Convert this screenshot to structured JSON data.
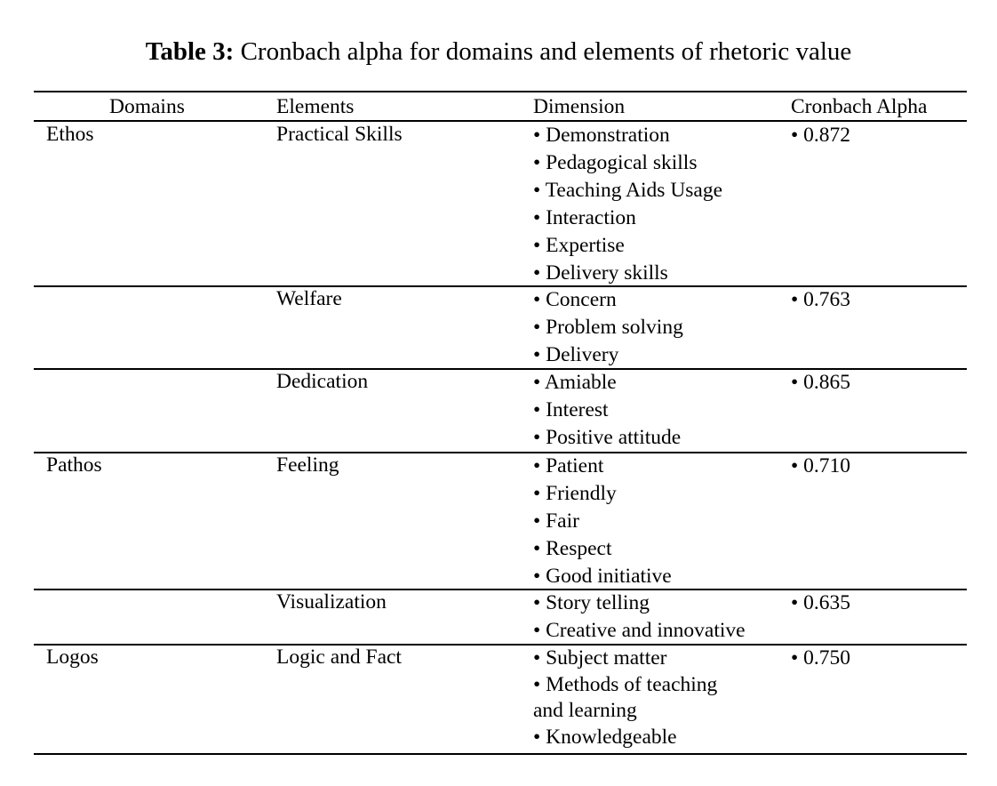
{
  "title": {
    "label": "Table 3:",
    "text": "Cronbach alpha for domains and elements of rhetoric value"
  },
  "headers": {
    "domains": "Domains",
    "elements": "Elements",
    "dimension": "Dimension",
    "alpha": "Cronbach Alpha"
  },
  "bullet": "•",
  "rows": [
    {
      "domain": "Ethos",
      "element": "Practical Skills",
      "dimensions": [
        "Demonstration",
        "Pedagogical skills",
        "Teaching Aids Usage",
        "Interaction",
        "Expertise",
        "Delivery skills"
      ],
      "alpha": "0.872"
    },
    {
      "domain": "",
      "element": "Welfare",
      "dimensions": [
        "Concern",
        "Problem solving",
        "Delivery"
      ],
      "alpha": "0.763"
    },
    {
      "domain": "",
      "element": "Dedication",
      "dimensions": [
        "Amiable",
        "Interest",
        "Positive attitude"
      ],
      "alpha": "0.865"
    },
    {
      "domain": "Pathos",
      "element": "Feeling",
      "dimensions": [
        "Patient",
        "Friendly",
        "Fair",
        "Respect",
        "Good initiative"
      ],
      "alpha": "0.710"
    },
    {
      "domain": "",
      "element": "Visualization",
      "dimensions": [
        "Story telling",
        "Creative and innovative"
      ],
      "alpha": "0.635"
    },
    {
      "domain": "Logos",
      "element": "Logic and Fact",
      "dimensions": [
        "Subject matter",
        "Methods of teaching and learning",
        "Knowledgeable"
      ],
      "alpha": "0.750"
    }
  ]
}
